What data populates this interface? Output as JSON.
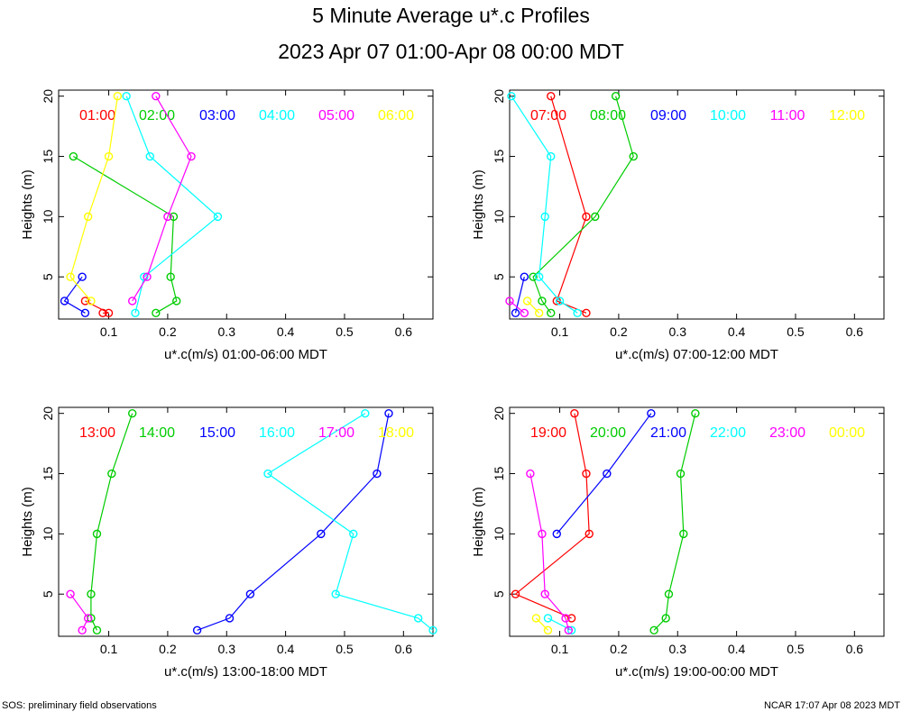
{
  "header": {
    "title": "5 Minute Average u*.c Profiles",
    "subtitle": "2023 Apr 07 01:00-Apr 08 00:00 MDT"
  },
  "footer": {
    "left": "SOS: preliminary field observations",
    "right": "NCAR 17:07 Apr 08 2023 MDT"
  },
  "chart_data": [
    {
      "type": "line",
      "xlabel": "u*.c(m/s) 01:00-06:00 MDT",
      "ylabel": "Heights (m)",
      "xlim": [
        0.015,
        0.65
      ],
      "ylim": [
        1.5,
        20.5
      ],
      "xticks": [
        0.1,
        0.2,
        0.3,
        0.4,
        0.5,
        0.6
      ],
      "yticks": [
        5,
        10,
        15,
        20
      ],
      "series": [
        {
          "name": "01:00",
          "color": "#ff0000",
          "x": [
            0.06,
            0.1,
            0.09
          ],
          "y": [
            3,
            2,
            2
          ]
        },
        {
          "name": "02:00",
          "color": "#00cc00",
          "x": [
            0.04,
            0.21,
            0.205,
            0.215,
            0.18
          ],
          "y": [
            15,
            10,
            5,
            3,
            2
          ]
        },
        {
          "name": "03:00",
          "color": "#0000ff",
          "x": [
            0.055,
            0.025,
            0.06
          ],
          "y": [
            5,
            3,
            2
          ]
        },
        {
          "name": "04:00",
          "color": "#00ffff",
          "x": [
            0.13,
            0.17,
            0.285,
            0.16,
            0.145
          ],
          "y": [
            20,
            15,
            10,
            5,
            2
          ]
        },
        {
          "name": "05:00",
          "color": "#ff00ff",
          "x": [
            0.18,
            0.24,
            0.2,
            0.165,
            0.14
          ],
          "y": [
            20,
            15,
            10,
            5,
            3
          ]
        },
        {
          "name": "06:00",
          "color": "#ffff00",
          "x": [
            0.115,
            0.1,
            0.065,
            0.035,
            0.07
          ],
          "y": [
            20,
            15,
            10,
            5,
            3
          ]
        }
      ]
    },
    {
      "type": "line",
      "xlabel": "u*.c(m/s) 07:00-12:00 MDT",
      "ylabel": "Heights (m)",
      "xlim": [
        0.015,
        0.65
      ],
      "ylim": [
        1.5,
        20.5
      ],
      "xticks": [
        0.1,
        0.2,
        0.3,
        0.4,
        0.5,
        0.6
      ],
      "yticks": [
        5,
        10,
        15,
        20
      ],
      "series": [
        {
          "name": "07:00",
          "color": "#ff0000",
          "x": [
            0.085,
            0.145,
            0.095,
            0.145
          ],
          "y": [
            20,
            10,
            3,
            2
          ]
        },
        {
          "name": "08:00",
          "color": "#00cc00",
          "x": [
            0.195,
            0.225,
            0.16,
            0.055,
            0.07,
            0.085
          ],
          "y": [
            20,
            15,
            10,
            5,
            3,
            2
          ]
        },
        {
          "name": "09:00",
          "color": "#0000ff",
          "x": [
            0.04,
            0.025
          ],
          "y": [
            5,
            2
          ]
        },
        {
          "name": "10:00",
          "color": "#00ffff",
          "x": [
            0.018,
            0.085,
            0.075,
            0.065,
            0.1,
            0.13
          ],
          "y": [
            20,
            15,
            10,
            5,
            3,
            2
          ]
        },
        {
          "name": "11:00",
          "color": "#ff00ff",
          "x": [
            0.015,
            0.04
          ],
          "y": [
            3,
            2
          ]
        },
        {
          "name": "12:00",
          "color": "#ffff00",
          "x": [
            0.045,
            0.065
          ],
          "y": [
            3,
            2
          ]
        }
      ]
    },
    {
      "type": "line",
      "xlabel": "u*.c(m/s) 13:00-18:00 MDT",
      "ylabel": "Heights (m)",
      "xlim": [
        0.015,
        0.65
      ],
      "ylim": [
        1.5,
        20.5
      ],
      "xticks": [
        0.1,
        0.2,
        0.3,
        0.4,
        0.5,
        0.6
      ],
      "yticks": [
        5,
        10,
        15,
        20
      ],
      "series": [
        {
          "name": "13:00",
          "color": "#ff0000",
          "x": [],
          "y": []
        },
        {
          "name": "14:00",
          "color": "#00cc00",
          "x": [
            0.14,
            0.105,
            0.08,
            0.07,
            0.07,
            0.08
          ],
          "y": [
            20,
            15,
            10,
            5,
            3,
            2
          ]
        },
        {
          "name": "15:00",
          "color": "#0000ff",
          "x": [
            0.575,
            0.555,
            0.46,
            0.34,
            0.305,
            0.25
          ],
          "y": [
            20,
            15,
            10,
            5,
            3,
            2
          ]
        },
        {
          "name": "16:00",
          "color": "#00ffff",
          "x": [
            0.535,
            0.37,
            0.515,
            0.485,
            0.625,
            0.65
          ],
          "y": [
            20,
            15,
            10,
            5,
            3,
            2
          ]
        },
        {
          "name": "17:00",
          "color": "#ff00ff",
          "x": [
            0.035,
            0.065,
            0.055
          ],
          "y": [
            5,
            3,
            2
          ]
        },
        {
          "name": "18:00",
          "color": "#ffff00",
          "x": [],
          "y": []
        }
      ]
    },
    {
      "type": "line",
      "xlabel": "u*.c(m/s) 19:00-00:00 MDT",
      "ylabel": "Heights (m)",
      "xlim": [
        0.015,
        0.65
      ],
      "ylim": [
        1.5,
        20.5
      ],
      "xticks": [
        0.1,
        0.2,
        0.3,
        0.4,
        0.5,
        0.6
      ],
      "yticks": [
        5,
        10,
        15,
        20
      ],
      "series": [
        {
          "name": "19:00",
          "color": "#ff0000",
          "x": [
            0.125,
            0.145,
            0.15,
            0.025,
            0.12
          ],
          "y": [
            20,
            15,
            10,
            5,
            3
          ]
        },
        {
          "name": "20:00",
          "color": "#00cc00",
          "x": [
            0.33,
            0.305,
            0.31,
            0.285,
            0.28,
            0.26
          ],
          "y": [
            20,
            15,
            10,
            5,
            3,
            2
          ]
        },
        {
          "name": "21:00",
          "color": "#0000ff",
          "x": [
            0.255,
            0.18,
            0.095
          ],
          "y": [
            20,
            15,
            10
          ]
        },
        {
          "name": "22:00",
          "color": "#00ffff",
          "x": [
            0.08,
            0.12
          ],
          "y": [
            3,
            2
          ]
        },
        {
          "name": "23:00",
          "color": "#ff00ff",
          "x": [
            0.05,
            0.07,
            0.075,
            0.11,
            0.115
          ],
          "y": [
            15,
            10,
            5,
            3,
            2
          ]
        },
        {
          "name": "00:00",
          "color": "#ffff00",
          "x": [
            0.06,
            0.08
          ],
          "y": [
            3,
            2
          ]
        }
      ]
    }
  ]
}
